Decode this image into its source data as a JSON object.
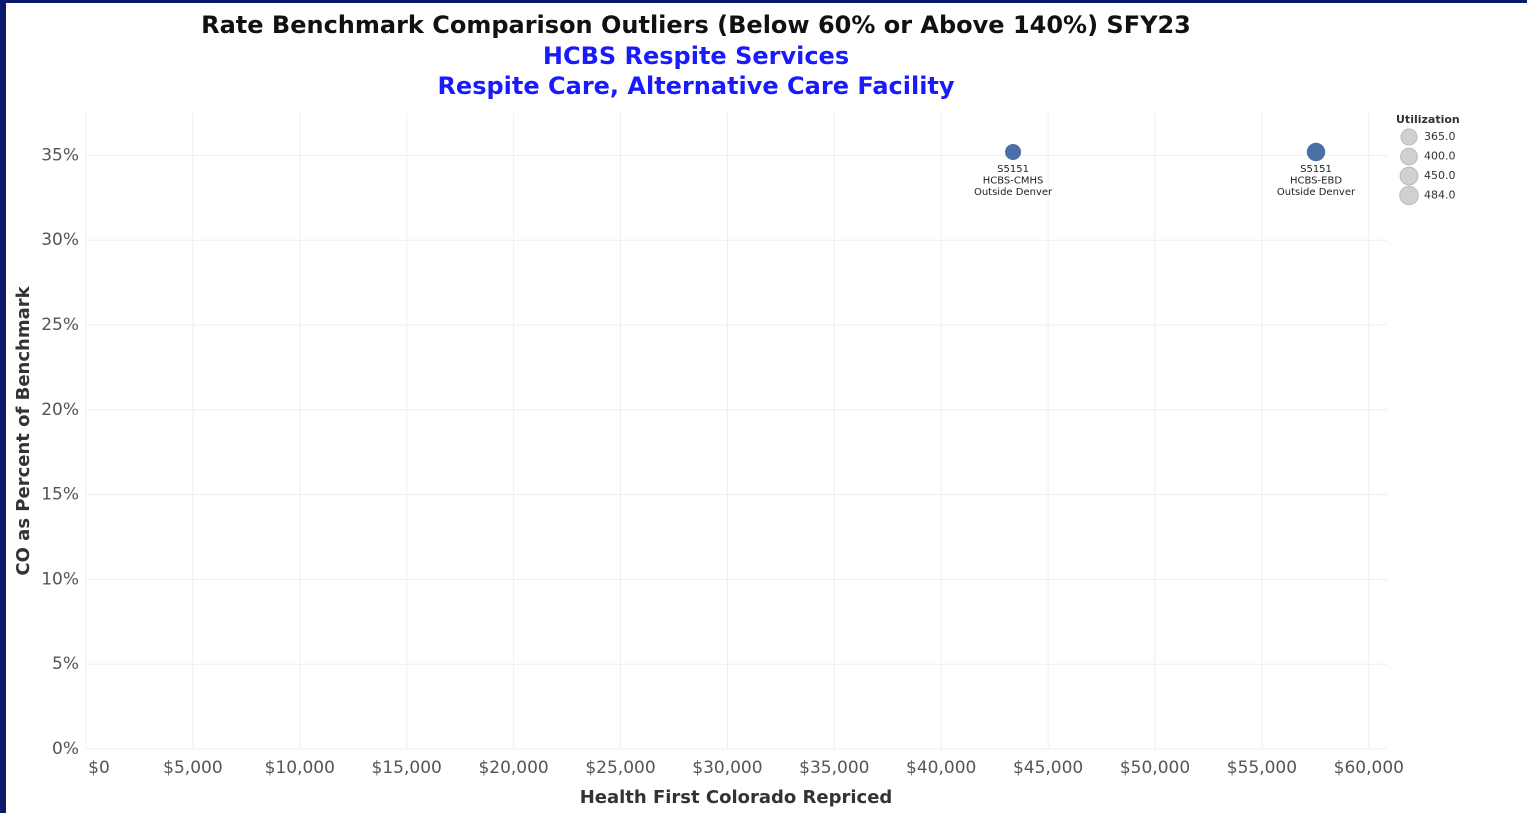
{
  "chart_data": {
    "type": "scatter",
    "title": "Rate Benchmark Comparison Outliers (Below 60% or Above 140%) SFY23",
    "subtitle": [
      "HCBS Respite Services",
      "Respite Care, Alternative Care Facility"
    ],
    "x_label": "Health First Colorado Repriced",
    "y_label": "CO as Percent of Benchmark",
    "xlim": [
      0,
      60850
    ],
    "ylim": [
      0,
      37.5
    ],
    "xticks": [
      {
        "value": 0,
        "label": "$0"
      },
      {
        "value": 5000,
        "label": "$5,000"
      },
      {
        "value": 10000,
        "label": "$10,000"
      },
      {
        "value": 15000,
        "label": "$15,000"
      },
      {
        "value": 20000,
        "label": "$20,000"
      },
      {
        "value": 25000,
        "label": "$25,000"
      },
      {
        "value": 30000,
        "label": "$30,000"
      },
      {
        "value": 35000,
        "label": "$35,000"
      },
      {
        "value": 40000,
        "label": "$40,000"
      },
      {
        "value": 45000,
        "label": "$45,000"
      },
      {
        "value": 50000,
        "label": "$50,000"
      },
      {
        "value": 55000,
        "label": "$55,000"
      },
      {
        "value": 60000,
        "label": "$60,000"
      }
    ],
    "yticks": [
      {
        "value": 0,
        "label": "0%"
      },
      {
        "value": 5,
        "label": "5%"
      },
      {
        "value": 10,
        "label": "10%"
      },
      {
        "value": 15,
        "label": "15%"
      },
      {
        "value": 20,
        "label": "20%"
      },
      {
        "value": 25,
        "label": "25%"
      },
      {
        "value": 30,
        "label": "30%"
      },
      {
        "value": 35,
        "label": "35%"
      }
    ],
    "grid": true,
    "series": [
      {
        "color": "#4a6fa5",
        "x": [
          43360,
          57530
        ],
        "values": [
          35.2,
          35.2
        ],
        "sizes": [
          365,
          484
        ],
        "labels": [
          [
            "S5151",
            "HCBS-CMHS",
            "Outside Denver"
          ],
          [
            "S5151",
            "HCBS-EBD",
            "Outside Denver"
          ]
        ]
      }
    ],
    "legend": {
      "title": "Utilization",
      "position": "upper right",
      "color": "#d0d0d0",
      "entries": [
        {
          "value": 365,
          "label": "365.0"
        },
        {
          "value": 400,
          "label": "400.0"
        },
        {
          "value": 450,
          "label": "450.0"
        },
        {
          "value": 484,
          "label": "484.0"
        }
      ]
    }
  }
}
